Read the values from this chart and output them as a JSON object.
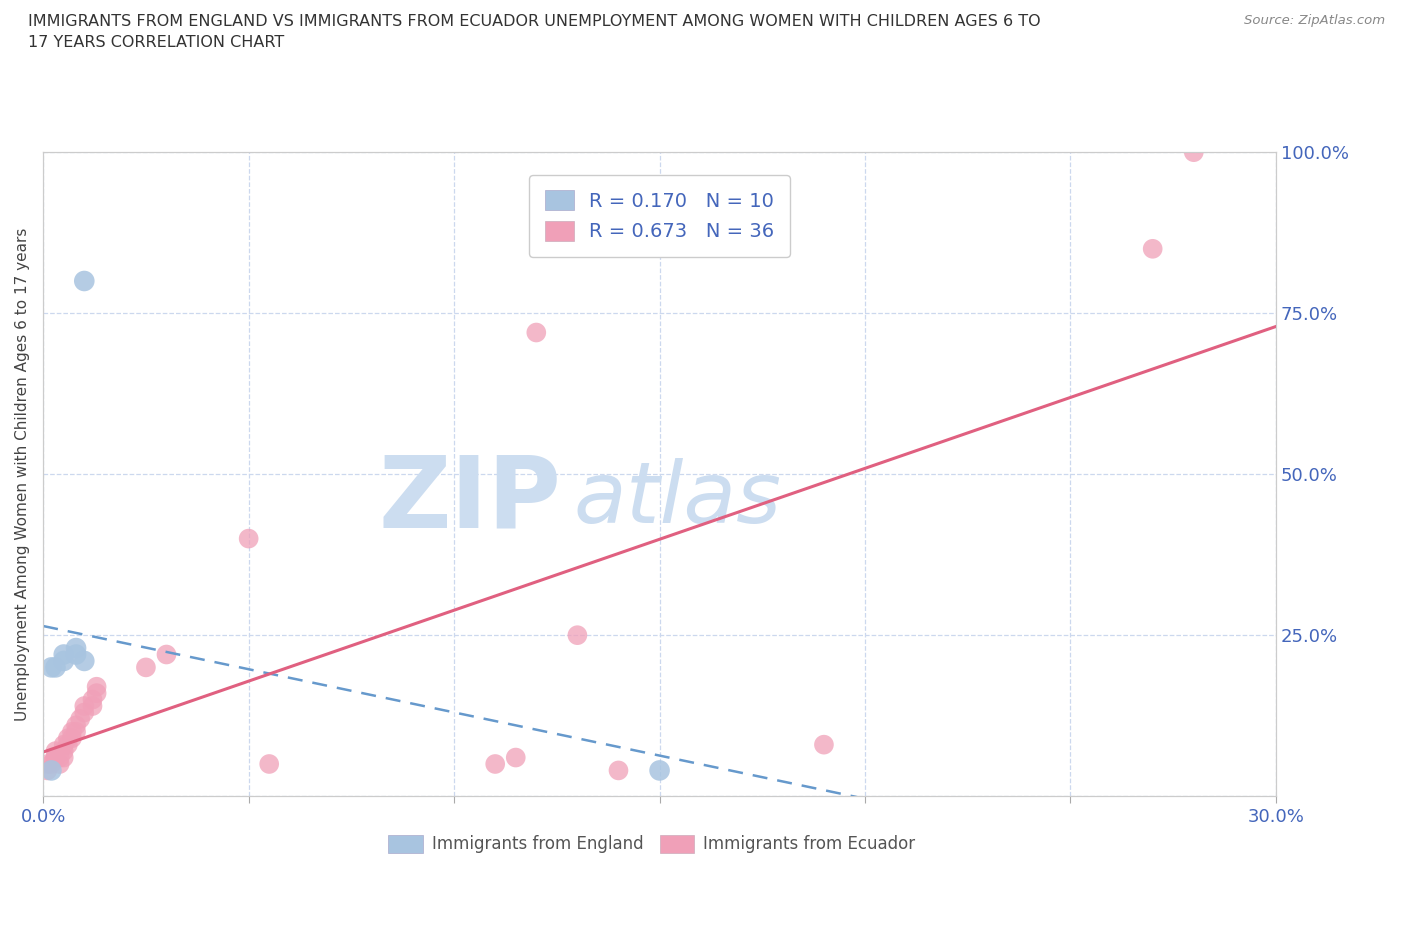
{
  "title": "IMMIGRANTS FROM ENGLAND VS IMMIGRANTS FROM ECUADOR UNEMPLOYMENT AMONG WOMEN WITH CHILDREN AGES 6 TO\n17 YEARS CORRELATION CHART",
  "source": "Source: ZipAtlas.com",
  "ylabel": "Unemployment Among Women with Children Ages 6 to 17 years",
  "xlim": [
    0.0,
    0.3
  ],
  "ylim": [
    0.0,
    1.0
  ],
  "xticks": [
    0.0,
    0.05,
    0.1,
    0.15,
    0.2,
    0.25,
    0.3
  ],
  "yticks": [
    0.0,
    0.25,
    0.5,
    0.75,
    1.0
  ],
  "england_color": "#a8c4e0",
  "england_line_color": "#6699cc",
  "ecuador_color": "#f0a0b8",
  "ecuador_line_color": "#e06080",
  "england_R": 0.17,
  "england_N": 10,
  "ecuador_R": 0.673,
  "ecuador_N": 36,
  "background_color": "#ffffff",
  "grid_color": "#ccd8ee",
  "watermark_zip": "ZIP",
  "watermark_atlas": "atlas",
  "watermark_color": "#ccddf0",
  "england_scatter": [
    [
      0.002,
      0.2
    ],
    [
      0.003,
      0.2
    ],
    [
      0.005,
      0.22
    ],
    [
      0.005,
      0.21
    ],
    [
      0.008,
      0.22
    ],
    [
      0.008,
      0.23
    ],
    [
      0.01,
      0.8
    ],
    [
      0.01,
      0.21
    ],
    [
      0.15,
      0.04
    ],
    [
      0.002,
      0.04
    ]
  ],
  "ecuador_scatter": [
    [
      0.001,
      0.04
    ],
    [
      0.001,
      0.05
    ],
    [
      0.002,
      0.05
    ],
    [
      0.003,
      0.06
    ],
    [
      0.003,
      0.07
    ],
    [
      0.003,
      0.06
    ],
    [
      0.004,
      0.05
    ],
    [
      0.004,
      0.06
    ],
    [
      0.005,
      0.08
    ],
    [
      0.005,
      0.07
    ],
    [
      0.005,
      0.06
    ],
    [
      0.006,
      0.09
    ],
    [
      0.006,
      0.08
    ],
    [
      0.007,
      0.1
    ],
    [
      0.007,
      0.09
    ],
    [
      0.008,
      0.1
    ],
    [
      0.008,
      0.11
    ],
    [
      0.009,
      0.12
    ],
    [
      0.01,
      0.13
    ],
    [
      0.01,
      0.14
    ],
    [
      0.012,
      0.15
    ],
    [
      0.012,
      0.14
    ],
    [
      0.013,
      0.16
    ],
    [
      0.013,
      0.17
    ],
    [
      0.025,
      0.2
    ],
    [
      0.03,
      0.22
    ],
    [
      0.05,
      0.4
    ],
    [
      0.055,
      0.05
    ],
    [
      0.12,
      0.72
    ],
    [
      0.13,
      0.25
    ],
    [
      0.19,
      0.08
    ],
    [
      0.14,
      0.04
    ],
    [
      0.11,
      0.05
    ],
    [
      0.115,
      0.06
    ],
    [
      0.28,
      1.0
    ],
    [
      0.27,
      0.85
    ]
  ],
  "legend_box_color": "#e8eef8",
  "legend_border_color": "#cccccc",
  "tick_label_color": "#4466bb",
  "axis_label_color": "#444444"
}
